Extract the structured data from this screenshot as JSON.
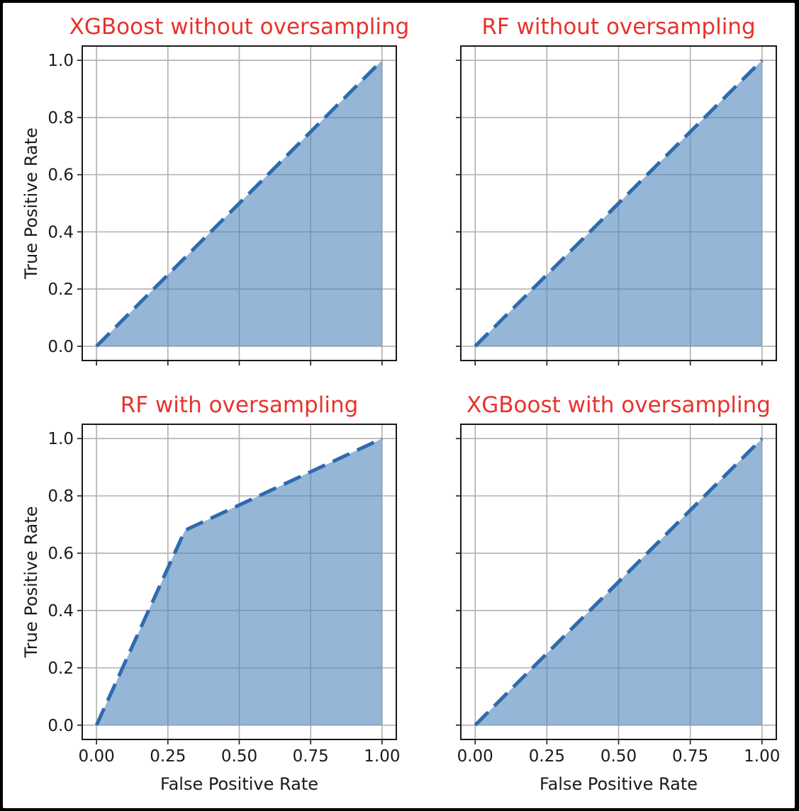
{
  "colors": {
    "title": "#e8322c",
    "fill": "#4f86bd",
    "line": "#2e6aad",
    "grid": "#b0b0b0"
  },
  "chart_data": [
    {
      "type": "area",
      "title": "XGBoost without oversampling",
      "xlabel": "",
      "ylabel": "True Positive Rate",
      "xlim": [
        -0.05,
        1.05
      ],
      "ylim": [
        -0.05,
        1.05
      ],
      "xticks": [
        0.0,
        0.25,
        0.5,
        0.75,
        1.0
      ],
      "xtick_labels": [],
      "yticks": [
        0.0,
        0.2,
        0.4,
        0.6,
        0.8,
        1.0
      ],
      "ytick_labels": [
        "0.0",
        "0.2",
        "0.4",
        "0.6",
        "0.8",
        "1.0"
      ],
      "grid": true,
      "x": [
        0.0,
        0.0,
        1.0
      ],
      "y": [
        0.0,
        0.0,
        1.0
      ]
    },
    {
      "type": "area",
      "title": "RF without oversampling",
      "xlabel": "",
      "ylabel": "",
      "xlim": [
        -0.05,
        1.05
      ],
      "ylim": [
        -0.05,
        1.05
      ],
      "xticks": [
        0.0,
        0.25,
        0.5,
        0.75,
        1.0
      ],
      "xtick_labels": [],
      "yticks": [
        0.0,
        0.2,
        0.4,
        0.6,
        0.8,
        1.0
      ],
      "ytick_labels": [],
      "grid": true,
      "x": [
        0.0,
        0.0,
        1.0
      ],
      "y": [
        0.0,
        0.0,
        1.0
      ]
    },
    {
      "type": "area",
      "title": "RF with oversampling",
      "xlabel": "False Positive Rate",
      "ylabel": "True Positive Rate",
      "xlim": [
        -0.05,
        1.05
      ],
      "ylim": [
        -0.05,
        1.05
      ],
      "xticks": [
        0.0,
        0.25,
        0.5,
        0.75,
        1.0
      ],
      "xtick_labels": [
        "0.00",
        "0.25",
        "0.50",
        "0.75",
        "1.00"
      ],
      "yticks": [
        0.0,
        0.2,
        0.4,
        0.6,
        0.8,
        1.0
      ],
      "ytick_labels": [
        "0.0",
        "0.2",
        "0.4",
        "0.6",
        "0.8",
        "1.0"
      ],
      "grid": true,
      "x": [
        0.0,
        0.31,
        1.0
      ],
      "y": [
        0.0,
        0.68,
        1.0
      ]
    },
    {
      "type": "area",
      "title": "XGBoost with oversampling",
      "xlabel": "False Positive Rate",
      "ylabel": "",
      "xlim": [
        -0.05,
        1.05
      ],
      "ylim": [
        -0.05,
        1.05
      ],
      "xticks": [
        0.0,
        0.25,
        0.5,
        0.75,
        1.0
      ],
      "xtick_labels": [
        "0.00",
        "0.25",
        "0.50",
        "0.75",
        "1.00"
      ],
      "yticks": [
        0.0,
        0.2,
        0.4,
        0.6,
        0.8,
        1.0
      ],
      "ytick_labels": [],
      "grid": true,
      "x": [
        0.0,
        0.0,
        1.0
      ],
      "y": [
        0.0,
        0.0,
        1.0
      ]
    }
  ]
}
